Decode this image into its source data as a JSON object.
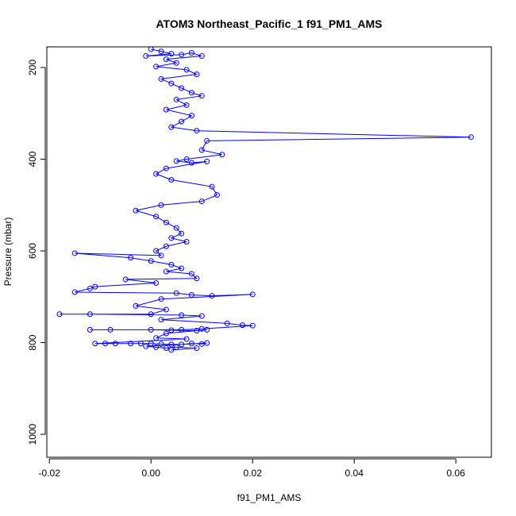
{
  "chart_data": {
    "type": "scatter",
    "title": "ATOM3 Northeast_Pacific_1 f91_PM1_AMS",
    "xlabel": "f91_PM1_AMS",
    "ylabel": "Pressure (mbar)",
    "xlim": [
      -0.0205,
      0.067
    ],
    "ylim": [
      1050,
      155
    ],
    "y_reversed": true,
    "x_ticks": [
      -0.02,
      0.0,
      0.02,
      0.04,
      0.06
    ],
    "x_tick_labels": [
      "-0.02",
      "0.00",
      "0.02",
      "0.04",
      "0.06"
    ],
    "y_ticks": [
      200,
      400,
      600,
      800,
      1000
    ],
    "y_tick_labels": [
      "200",
      "400",
      "600",
      "800",
      "1000"
    ],
    "series": [
      {
        "color": "#0000ff",
        "marker": "open-circle",
        "connect_lines": true,
        "points": [
          [
            0.0,
            160
          ],
          [
            0.002,
            165
          ],
          [
            0.004,
            170
          ],
          [
            -0.001,
            175
          ],
          [
            0.006,
            172
          ],
          [
            0.008,
            168
          ],
          [
            0.01,
            175
          ],
          [
            0.003,
            182
          ],
          [
            0.005,
            190
          ],
          [
            0.001,
            198
          ],
          [
            0.007,
            205
          ],
          [
            0.009,
            215
          ],
          [
            0.002,
            225
          ],
          [
            0.004,
            235
          ],
          [
            0.006,
            245
          ],
          [
            0.008,
            255
          ],
          [
            0.01,
            262
          ],
          [
            0.005,
            270
          ],
          [
            0.007,
            282
          ],
          [
            0.003,
            292
          ],
          [
            0.008,
            305
          ],
          [
            0.006,
            318
          ],
          [
            0.004,
            330
          ],
          [
            0.009,
            338
          ],
          [
            0.063,
            352
          ],
          [
            0.011,
            360
          ],
          [
            0.01,
            380
          ],
          [
            0.014,
            390
          ],
          [
            0.007,
            400
          ],
          [
            0.005,
            404
          ],
          [
            0.008,
            408
          ],
          [
            0.011,
            405
          ],
          [
            0.003,
            420
          ],
          [
            0.001,
            432
          ],
          [
            0.004,
            445
          ],
          [
            0.012,
            460
          ],
          [
            0.013,
            478
          ],
          [
            0.01,
            492
          ],
          [
            0.002,
            500
          ],
          [
            -0.003,
            512
          ],
          [
            0.001,
            525
          ],
          [
            0.003,
            538
          ],
          [
            0.005,
            550
          ],
          [
            0.006,
            562
          ],
          [
            0.004,
            572
          ],
          [
            0.007,
            580
          ],
          [
            0.003,
            590
          ],
          [
            0.001,
            600
          ],
          [
            0.002,
            610
          ],
          [
            -0.015,
            605
          ],
          [
            -0.004,
            615
          ],
          [
            0.0,
            622
          ],
          [
            0.004,
            630
          ],
          [
            0.006,
            638
          ],
          [
            0.003,
            645
          ],
          [
            0.008,
            650
          ],
          [
            0.009,
            660
          ],
          [
            -0.005,
            662
          ],
          [
            0.001,
            670
          ],
          [
            -0.011,
            678
          ],
          [
            -0.012,
            682
          ],
          [
            -0.015,
            690
          ],
          [
            0.005,
            692
          ],
          [
            0.008,
            696
          ],
          [
            0.012,
            698
          ],
          [
            0.02,
            695
          ],
          [
            0.002,
            705
          ],
          [
            -0.003,
            720
          ],
          [
            0.003,
            728
          ],
          [
            0.0,
            738
          ],
          [
            -0.018,
            738
          ],
          [
            -0.012,
            738
          ],
          [
            0.006,
            740
          ],
          [
            0.01,
            742
          ],
          [
            0.002,
            750
          ],
          [
            0.015,
            758
          ],
          [
            0.018,
            762
          ],
          [
            0.02,
            763
          ],
          [
            0.01,
            770
          ],
          [
            0.006,
            772
          ],
          [
            -0.012,
            772
          ],
          [
            -0.008,
            772
          ],
          [
            0.0,
            772
          ],
          [
            0.004,
            773
          ],
          [
            0.009,
            774
          ],
          [
            0.011,
            772
          ],
          [
            0.003,
            780
          ],
          [
            0.001,
            790
          ],
          [
            0.007,
            792
          ],
          [
            -0.011,
            802
          ],
          [
            -0.009,
            802
          ],
          [
            -0.007,
            802
          ],
          [
            -0.004,
            802
          ],
          [
            -0.002,
            802
          ],
          [
            0.0,
            802
          ],
          [
            0.002,
            803
          ],
          [
            0.004,
            804
          ],
          [
            0.006,
            804
          ],
          [
            0.008,
            802
          ],
          [
            0.01,
            803
          ],
          [
            0.011,
            801
          ],
          [
            -0.001,
            808
          ],
          [
            0.001,
            810
          ],
          [
            0.003,
            812
          ],
          [
            0.005,
            810
          ],
          [
            0.009,
            812
          ],
          [
            0.004,
            816
          ]
        ]
      }
    ]
  }
}
